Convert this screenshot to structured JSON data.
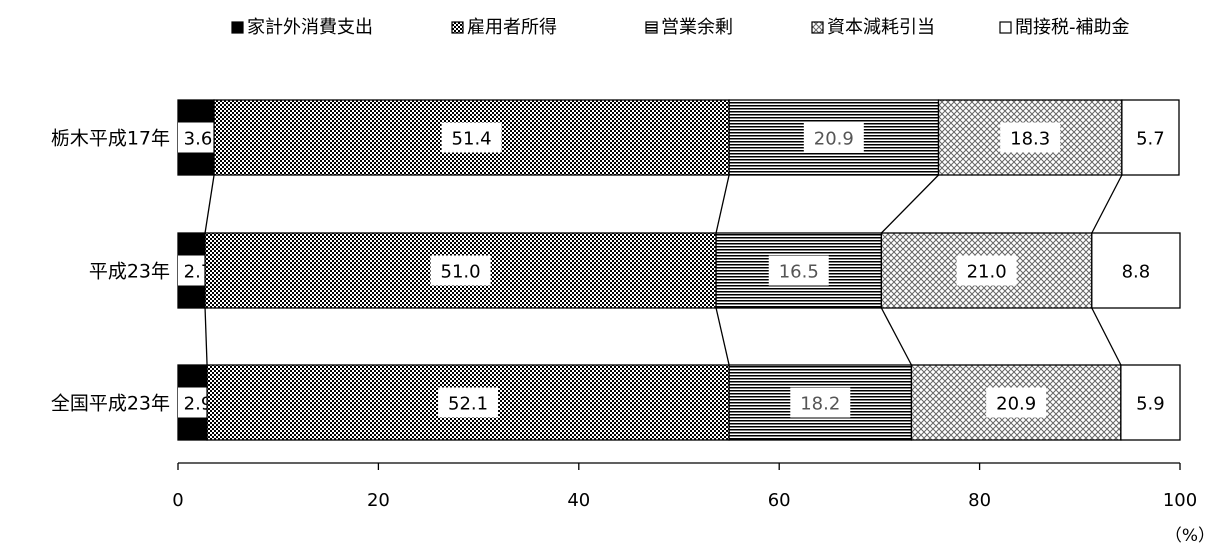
{
  "chart_data": {
    "type": "bar",
    "orientation": "horizontal",
    "stacked": true,
    "categories": [
      "栃木平成17年",
      "平成23年",
      "全国平成23年"
    ],
    "series": [
      {
        "name": "家計外消費支出",
        "values": [
          3.6,
          2.7,
          2.9
        ]
      },
      {
        "name": "雇用者所得",
        "values": [
          51.4,
          51.0,
          52.1
        ]
      },
      {
        "name": "営業余剰",
        "values": [
          20.9,
          16.5,
          18.2
        ]
      },
      {
        "name": "資本減耗引当",
        "values": [
          18.3,
          21.0,
          20.9
        ]
      },
      {
        "name": "間接税-補助金",
        "values": [
          5.7,
          8.8,
          5.9
        ]
      }
    ],
    "value_labels": [
      [
        "3.6",
        "51.4",
        "20.9",
        "18.3",
        "5.7"
      ],
      [
        "2.7",
        "51.0",
        "16.5",
        "21.0",
        "8.8"
      ],
      [
        "2.9",
        "52.1",
        "18.2",
        "20.9",
        "5.9"
      ]
    ],
    "xlim": [
      0,
      100
    ],
    "xticks": [
      "0",
      "20",
      "40",
      "60",
      "80",
      "100"
    ],
    "unit_label": "（%）",
    "legend_position": "top",
    "grid": false
  }
}
